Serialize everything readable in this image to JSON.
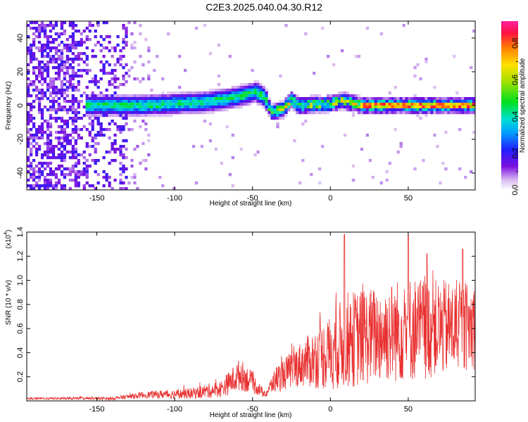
{
  "title": "C2E3.2025.040.04.30.R12",
  "colorbar": {
    "label": "Normalized spectral amplitude",
    "ticks": [
      "0.0",
      "0.2",
      "0.4",
      "0.6",
      "0.8"
    ],
    "tick_values": [
      0.0,
      0.2,
      0.4,
      0.6,
      0.8
    ],
    "range": [
      0,
      0.92
    ]
  },
  "chart_data": [
    {
      "type": "heatmap",
      "xlabel": "Height of straight line (km)",
      "ylabel": "Frequency (Hz)",
      "xlim": [
        -195,
        93
      ],
      "ylim": [
        -50,
        50
      ],
      "x_ticks": [
        -150,
        -100,
        -50,
        0,
        50
      ],
      "x_tick_labels": [
        "-150",
        "-100",
        "-50",
        "0",
        "50"
      ],
      "y_ticks": [
        -40,
        -20,
        0,
        20,
        40
      ],
      "y_tick_labels": [
        "-40",
        "-20",
        "0",
        "20",
        "40"
      ],
      "ridge": [
        {
          "x": -150,
          "f": 0
        },
        {
          "x": -120,
          "f": 0
        },
        {
          "x": -100,
          "f": 1
        },
        {
          "x": -80,
          "f": 2
        },
        {
          "x": -60,
          "f": 5
        },
        {
          "x": -48,
          "f": 8
        },
        {
          "x": -42,
          "f": 5
        },
        {
          "x": -38,
          "f": -4
        },
        {
          "x": -30,
          "f": -2
        },
        {
          "x": -25,
          "f": 3
        },
        {
          "x": -20,
          "f": 0
        },
        {
          "x": 0,
          "f": 1
        },
        {
          "x": 8,
          "f": 3
        },
        {
          "x": 20,
          "f": 0
        },
        {
          "x": 50,
          "f": 0
        },
        {
          "x": 93,
          "f": 0
        }
      ],
      "noise_region_x": [
        -195,
        -130
      ]
    },
    {
      "type": "line",
      "xlabel": "Height of straight line (km)",
      "ylabel": "SNR (10 * v/v)",
      "y_multiplier": "(x10",
      "y_multiplier_exp": "4",
      "y_multiplier_close": ")",
      "xlim": [
        -195,
        93
      ],
      "ylim": [
        0,
        1.4
      ],
      "x_ticks": [
        -150,
        -100,
        -50,
        0,
        50
      ],
      "x_tick_labels": [
        "-150",
        "-100",
        "-50",
        "0",
        "50"
      ],
      "y_ticks": [
        0.2,
        0.4,
        0.6,
        0.8,
        1.0,
        1.2,
        1.4
      ],
      "y_tick_labels": [
        "0.2",
        "0.4",
        "0.6",
        "0.8",
        "1.0",
        "1.2",
        "1.4"
      ],
      "line_color": "#e8302f",
      "envelope": [
        {
          "x": -195,
          "mean": 0.02,
          "amp": 0.01
        },
        {
          "x": -140,
          "mean": 0.02,
          "amp": 0.015
        },
        {
          "x": -120,
          "mean": 0.05,
          "amp": 0.03
        },
        {
          "x": -90,
          "mean": 0.06,
          "amp": 0.05
        },
        {
          "x": -70,
          "mean": 0.1,
          "amp": 0.08
        },
        {
          "x": -58,
          "mean": 0.22,
          "amp": 0.15
        },
        {
          "x": -50,
          "mean": 0.15,
          "amp": 0.1
        },
        {
          "x": -42,
          "mean": 0.05,
          "amp": 0.03
        },
        {
          "x": -35,
          "mean": 0.18,
          "amp": 0.12
        },
        {
          "x": -20,
          "mean": 0.3,
          "amp": 0.2
        },
        {
          "x": 0,
          "mean": 0.4,
          "amp": 0.35
        },
        {
          "x": 10,
          "mean": 0.5,
          "amp": 0.45
        },
        {
          "x": 30,
          "mean": 0.55,
          "amp": 0.45
        },
        {
          "x": 50,
          "mean": 0.6,
          "amp": 0.5
        },
        {
          "x": 70,
          "mean": 0.6,
          "amp": 0.45
        },
        {
          "x": 93,
          "mean": 0.62,
          "amp": 0.4
        }
      ],
      "peaks": [
        {
          "x": 9,
          "y": 1.38
        },
        {
          "x": 50,
          "y": 1.37
        },
        {
          "x": 85,
          "y": 1.26
        },
        {
          "x": 62,
          "y": 1.22
        }
      ]
    }
  ]
}
